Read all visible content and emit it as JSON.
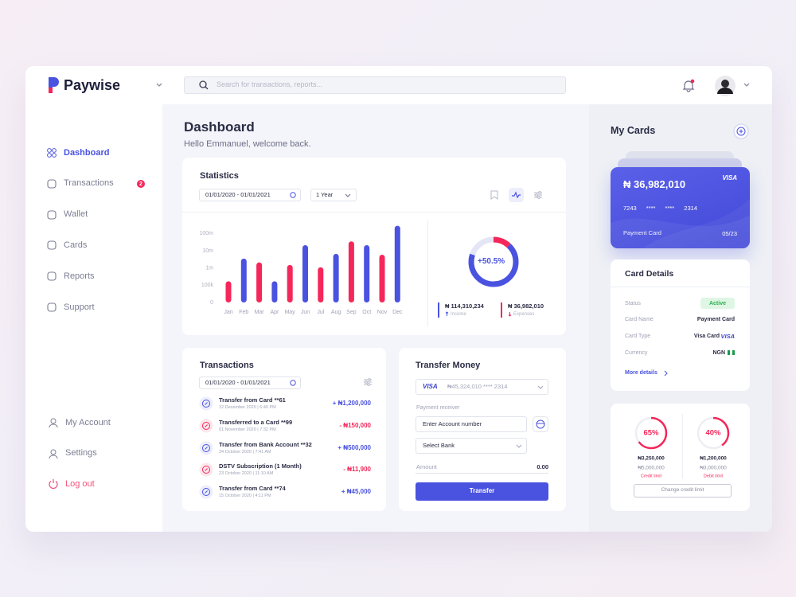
{
  "header": {
    "brand": "Paywise",
    "search_placeholder": "Search for transactions, reports..."
  },
  "sidebar": {
    "nav": [
      "Dashboard",
      "Transactions",
      "Wallet",
      "Cards",
      "Reports",
      "Support"
    ],
    "transactions_badge": 2,
    "bottom": [
      "My Account",
      "Settings",
      "Log out"
    ]
  },
  "page": {
    "title": "Dashboard",
    "subtitle": "Hello Emmanuel, welcome back."
  },
  "statistics": {
    "title": "Statistics",
    "date_range": "01/01/2020 - 01/01/2021",
    "period": "1 Year",
    "growth": "+50.5%",
    "income": {
      "amount": "₦ 114,310,234",
      "label": "Income"
    },
    "expenses": {
      "amount": "₦ 36,982,010",
      "label": "Expenses"
    }
  },
  "chart_data": {
    "type": "bar",
    "categories": [
      "Jan",
      "Feb",
      "Mar",
      "Apr",
      "May",
      "Jun",
      "Jul",
      "Aug",
      "Sep",
      "Oct",
      "Nov",
      "Dec"
    ],
    "values": [
      170000,
      3500000,
      2100000,
      170000,
      1500000,
      21000000,
      1100000,
      6600000,
      35000000,
      21000000,
      5900000,
      280000000
    ],
    "colors": [
      "#f5275a",
      "#4a52e0",
      "#f5275a",
      "#4a52e0",
      "#f5275a",
      "#4a52e0",
      "#f5275a",
      "#4a52e0",
      "#f5275a",
      "#4a52e0",
      "#f5275a",
      "#4a52e0"
    ],
    "yscale": "log",
    "ylim": [
      0,
      300000000
    ],
    "yticks": [
      0,
      {
        "value": 100000,
        "label": "100k"
      },
      {
        "value": 1000000,
        "label": "1m"
      },
      {
        "value": 10000000,
        "label": "10m"
      },
      {
        "value": 100000000,
        "label": "100m"
      }
    ],
    "grid": false
  },
  "transactions": {
    "title": "Transactions",
    "date_range": "01/01/2020 - 01/01/2021",
    "items": [
      {
        "title": "Transfer from Card  **61",
        "date": "12 December 2020 | 6:40 PM",
        "amount": "+ ₦1,200,000"
      },
      {
        "title": "Transferred to a Card  **99",
        "date": "01 November 2020 | 7:32 PM",
        "amount": "- ₦150,000"
      },
      {
        "title": "Transfer from Bank Account **32",
        "date": "24 October 2020 | 7:41 AM",
        "amount": "+ ₦500,000"
      },
      {
        "title": "DSTV Subscription (1 Month)",
        "date": "23 October 2020 | 11:10 AM",
        "amount": "- ₦11,900"
      },
      {
        "title": "Transfer from Card  **74",
        "date": "15 October 2020 | 4:11 PM",
        "amount": "+ ₦45,000"
      }
    ]
  },
  "transfer": {
    "title": "Transfer Money",
    "card_brand": "VISA",
    "card_account": "₦45,324,010 **** 2314",
    "receiver_label": "Payment receiver",
    "account_placeholder": "Enter Account number",
    "bank_placeholder": "Select Bank",
    "amount_label": "Amount",
    "amount": "0.00",
    "button": "Transfer"
  },
  "my_cards": {
    "title": "My Cards",
    "card": {
      "balance": "₦ 36,982,010",
      "brand": "VISA",
      "number": "7243 **** **** 2314",
      "name": "Payment Card",
      "expiry": "05/23"
    }
  },
  "card_details": {
    "title": "Card Details",
    "rows": [
      {
        "label": "Status",
        "value": "Active"
      },
      {
        "label": "Card Name",
        "value": "Payment Card"
      },
      {
        "label": "Card Type",
        "value": "Visa Card"
      },
      {
        "label": "Currency",
        "value": "NGN"
      }
    ],
    "card_type_brand": "VISA",
    "more": "More details"
  },
  "limits": {
    "items": [
      {
        "value": 65,
        "value_label": "65%",
        "used": "₦3,250,000",
        "total": "₦5,000,000",
        "name": "Credit limit"
      },
      {
        "value": 40,
        "value_label": "40%",
        "used": "₦1,200,000",
        "total": "₦3,000,000",
        "name": "Debit limit"
      }
    ],
    "button": "Change credit limit"
  }
}
